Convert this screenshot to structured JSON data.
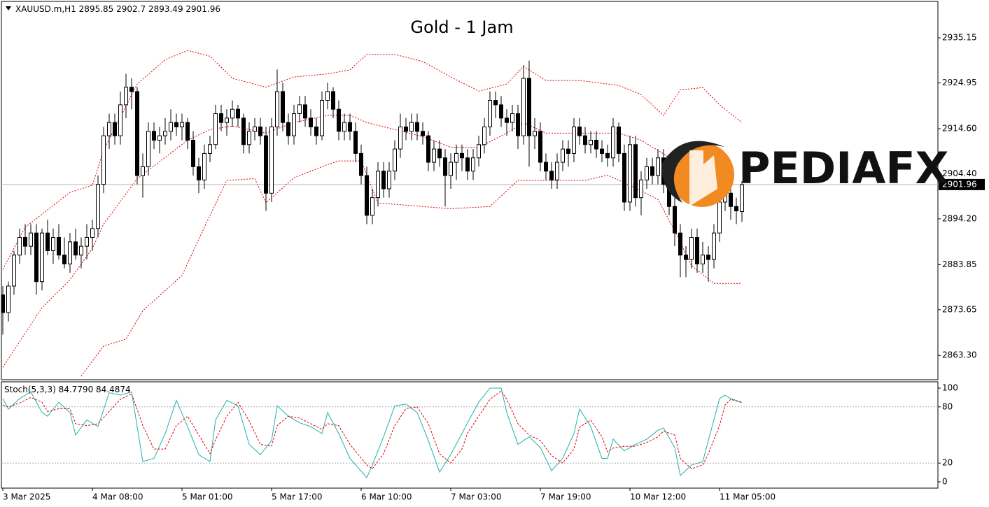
{
  "chart_data": {
    "type": "candlestick",
    "symbol": "XAUUSD.m,H1",
    "title": "Gold - 1 Jam",
    "watermark": "PEDIAFX",
    "up_color": "#ffffff",
    "down_color": "#000000",
    "ylim": [
      2857.8,
      2943.4
    ],
    "yticks": [
      {
        "value": 2863.3,
        "label": "2863.30"
      },
      2873.65,
      2883.85,
      {
        "value": 2894.2,
        "label": "2894.20"
      },
      {
        "value": 2904.4,
        "label": "2904.40"
      },
      {
        "value": 2914.6,
        "label": "2914.60"
      },
      2924.95,
      2935.15
    ],
    "xticks": [
      {
        "value": 0,
        "label": "3 Mar 2025"
      },
      {
        "value": 16,
        "label": "4 Mar 08:00"
      },
      {
        "value": 32,
        "label": "5 Mar 01:00"
      },
      {
        "value": 48,
        "label": "5 Mar 17:00"
      },
      {
        "value": 64,
        "label": "6 Mar 10:00"
      },
      {
        "value": 80,
        "label": "7 Mar 03:00"
      },
      {
        "value": 96,
        "label": "7 Mar 19:00"
      },
      {
        "value": 112,
        "label": "10 Mar 12:00"
      },
      {
        "value": 128,
        "label": "11 Mar 05:00"
      }
    ],
    "ohlc": [
      [
        2877,
        2879,
        2868,
        2873
      ],
      [
        2873,
        2880,
        2871,
        2879
      ],
      [
        2879,
        2887,
        2877,
        2886
      ],
      [
        2886,
        2892,
        2884,
        2890
      ],
      [
        2890,
        2893,
        2886,
        2888
      ],
      [
        2888,
        2893,
        2886,
        2891
      ],
      [
        2891,
        2893,
        2877,
        2880
      ],
      [
        2880,
        2892,
        2878,
        2891
      ],
      [
        2891,
        2894,
        2886,
        2887
      ],
      [
        2887,
        2892,
        2884,
        2890
      ],
      [
        2890,
        2893,
        2885,
        2886
      ],
      [
        2886,
        2890,
        2883,
        2884
      ],
      [
        2884,
        2891,
        2882,
        2889
      ],
      [
        2889,
        2892,
        2885,
        2886
      ],
      [
        2886,
        2890,
        2883,
        2888
      ],
      [
        2888,
        2893,
        2885,
        2890
      ],
      [
        2890,
        2894,
        2887,
        2892
      ],
      [
        2892,
        2904,
        2890,
        2902
      ],
      [
        2902,
        2915,
        2900,
        2913
      ],
      [
        2913,
        2918,
        2910,
        2916
      ],
      [
        2916,
        2918,
        2911,
        2913
      ],
      [
        2913,
        2923,
        2911,
        2920
      ],
      [
        2920,
        2927,
        2917,
        2924
      ],
      [
        2924,
        2926,
        2919,
        2923
      ],
      [
        2923,
        2924,
        2902,
        2904
      ],
      [
        2904,
        2909,
        2899,
        2906
      ],
      [
        2906,
        2916,
        2904,
        2914
      ],
      [
        2914,
        2916,
        2910,
        2912
      ],
      [
        2912,
        2915,
        2909,
        2913
      ],
      [
        2913,
        2917,
        2911,
        2914
      ],
      [
        2914,
        2919,
        2912,
        2916
      ],
      [
        2916,
        2918,
        2913,
        2915
      ],
      [
        2915,
        2918,
        2912,
        2916
      ],
      [
        2916,
        2917,
        2910,
        2912
      ],
      [
        2912,
        2914,
        2904,
        2906
      ],
      [
        2906,
        2908,
        2900,
        2903
      ],
      [
        2903,
        2911,
        2901,
        2909
      ],
      [
        2909,
        2913,
        2907,
        2911
      ],
      [
        2911,
        2920,
        2910,
        2918
      ],
      [
        2918,
        2920,
        2914,
        2916
      ],
      [
        2916,
        2919,
        2913,
        2917
      ],
      [
        2917,
        2921,
        2915,
        2919
      ],
      [
        2919,
        2920,
        2915,
        2917
      ],
      [
        2917,
        2918,
        2909,
        2911
      ],
      [
        2911,
        2916,
        2909,
        2914
      ],
      [
        2914,
        2917,
        2912,
        2915
      ],
      [
        2915,
        2917,
        2911,
        2913
      ],
      [
        2913,
        2915,
        2896,
        2900
      ],
      [
        2900,
        2917,
        2898,
        2915
      ],
      [
        2915,
        2928,
        2913,
        2923
      ],
      [
        2923,
        2925,
        2914,
        2916
      ],
      [
        2916,
        2918,
        2911,
        2913
      ],
      [
        2913,
        2920,
        2911,
        2918
      ],
      [
        2918,
        2922,
        2916,
        2920
      ],
      [
        2920,
        2922,
        2915,
        2917
      ],
      [
        2917,
        2919,
        2913,
        2915
      ],
      [
        2915,
        2917,
        2911,
        2913
      ],
      [
        2913,
        2923,
        2912,
        2921
      ],
      [
        2921,
        2925,
        2919,
        2923
      ],
      [
        2923,
        2924,
        2917,
        2919
      ],
      [
        2919,
        2921,
        2912,
        2914
      ],
      [
        2914,
        2918,
        2912,
        2916
      ],
      [
        2916,
        2918,
        2912,
        2914
      ],
      [
        2914,
        2916,
        2907,
        2909
      ],
      [
        2909,
        2911,
        2902,
        2904
      ],
      [
        2904,
        2906,
        2893,
        2895
      ],
      [
        2895,
        2901,
        2893,
        2899
      ],
      [
        2899,
        2907,
        2897,
        2905
      ],
      [
        2905,
        2907,
        2899,
        2901
      ],
      [
        2901,
        2907,
        2899,
        2905
      ],
      [
        2905,
        2912,
        2903,
        2910
      ],
      [
        2910,
        2918,
        2908,
        2915
      ],
      [
        2915,
        2917,
        2912,
        2914
      ],
      [
        2914,
        2918,
        2912,
        2916
      ],
      [
        2916,
        2918,
        2912,
        2914
      ],
      [
        2914,
        2916,
        2911,
        2913
      ],
      [
        2913,
        2914,
        2905,
        2907
      ],
      [
        2907,
        2912,
        2905,
        2910
      ],
      [
        2910,
        2912,
        2906,
        2908
      ],
      [
        2908,
        2910,
        2897,
        2904
      ],
      [
        2904,
        2909,
        2901,
        2907
      ],
      [
        2907,
        2911,
        2903,
        2909
      ],
      [
        2909,
        2911,
        2905,
        2908
      ],
      [
        2908,
        2910,
        2903,
        2905
      ],
      [
        2905,
        2910,
        2903,
        2908
      ],
      [
        2908,
        2913,
        2906,
        2911
      ],
      [
        2911,
        2917,
        2909,
        2915
      ],
      [
        2915,
        2923,
        2913,
        2921
      ],
      [
        2921,
        2923,
        2917,
        2920
      ],
      [
        2920,
        2922,
        2915,
        2917
      ],
      [
        2917,
        2919,
        2913,
        2916
      ],
      [
        2916,
        2920,
        2914,
        2918
      ],
      [
        2918,
        2920,
        2910,
        2913
      ],
      [
        2913,
        2929,
        2911,
        2926
      ],
      [
        2926,
        2930,
        2906,
        2913
      ],
      [
        2913,
        2917,
        2910,
        2914
      ],
      [
        2914,
        2916,
        2905,
        2907
      ],
      [
        2907,
        2909,
        2903,
        2905
      ],
      [
        2905,
        2907,
        2901,
        2903
      ],
      [
        2903,
        2909,
        2901,
        2907
      ],
      [
        2907,
        2912,
        2905,
        2910
      ],
      [
        2910,
        2912,
        2906,
        2909
      ],
      [
        2909,
        2917,
        2907,
        2915
      ],
      [
        2915,
        2917,
        2911,
        2913
      ],
      [
        2913,
        2915,
        2909,
        2911
      ],
      [
        2911,
        2914,
        2909,
        2912
      ],
      [
        2912,
        2914,
        2908,
        2910
      ],
      [
        2910,
        2912,
        2907,
        2909
      ],
      [
        2909,
        2911,
        2906,
        2908
      ],
      [
        2908,
        2917,
        2906,
        2915
      ],
      [
        2915,
        2916,
        2907,
        2909
      ],
      [
        2909,
        2911,
        2896,
        2898
      ],
      [
        2898,
        2913,
        2896,
        2911
      ],
      [
        2911,
        2913,
        2897,
        2899
      ],
      [
        2899,
        2905,
        2895,
        2903
      ],
      [
        2903,
        2908,
        2901,
        2906
      ],
      [
        2906,
        2908,
        2902,
        2904
      ],
      [
        2904,
        2910,
        2902,
        2908
      ],
      [
        2908,
        2910,
        2900,
        2902
      ],
      [
        2902,
        2904,
        2895,
        2897
      ],
      [
        2897,
        2899,
        2888,
        2891
      ],
      [
        2891,
        2893,
        2881,
        2886
      ],
      [
        2886,
        2888,
        2881,
        2885
      ],
      [
        2885,
        2892,
        2883,
        2890
      ],
      [
        2890,
        2892,
        2882,
        2884
      ],
      [
        2884,
        2889,
        2882,
        2886
      ],
      [
        2886,
        2888,
        2880,
        2885
      ],
      [
        2885,
        2893,
        2883,
        2891
      ],
      [
        2891,
        2900,
        2889,
        2898
      ],
      [
        2898,
        2902,
        2896,
        2900
      ],
      [
        2900,
        2901,
        2894,
        2897
      ],
      [
        2897,
        2899,
        2893,
        2896
      ],
      [
        2895.85,
        2902.7,
        2893.49,
        2901.96
      ]
    ],
    "bands": {
      "color": "#e00000",
      "upper": {
        "x": [
          0,
          4,
          12,
          16,
          18,
          24,
          29,
          33,
          37,
          41,
          47,
          52,
          58,
          62,
          65,
          70,
          75,
          80,
          85,
          90,
          93,
          97,
          103,
          110,
          114,
          118,
          121,
          125,
          128,
          132
        ],
        "values": [
          2882.8,
          2892.3,
          2900.2,
          2901.8,
          2909.7,
          2924.7,
          2930.2,
          2932.3,
          2931,
          2926,
          2924,
          2926.3,
          2927,
          2927.9,
          2931.4,
          2931.4,
          2929.8,
          2926.3,
          2923.1,
          2924.7,
          2928.7,
          2925.5,
          2925.5,
          2924.4,
          2922.3,
          2917.6,
          2923.4,
          2923.9,
          2920,
          2916
        ]
      },
      "middle": {
        "x": [
          0,
          7,
          12,
          16,
          18,
          24,
          29,
          33,
          37,
          41,
          47,
          52,
          58,
          62,
          65,
          70,
          75,
          80,
          85,
          90,
          93,
          97,
          103,
          110,
          114,
          118,
          121,
          125,
          128
        ],
        "values": [
          2860.6,
          2874.1,
          2880.4,
          2887.5,
          2893,
          2903.3,
          2908.1,
          2912,
          2914.4,
          2915.2,
          2913.6,
          2916,
          2917.6,
          2917.6,
          2916,
          2914.4,
          2912.8,
          2910.4,
          2910.4,
          2913.6,
          2916,
          2913.6,
          2913.6,
          2913.6,
          2912,
          2908.9,
          2906.5,
          2904.1,
          2902.6
        ]
      },
      "lower": {
        "x": [
          14,
          18,
          22,
          25,
          32,
          36,
          40,
          45,
          47,
          52,
          58,
          60,
          64,
          67,
          75,
          80,
          87,
          92,
          104,
          108,
          112,
          117,
          120,
          123,
          127,
          132
        ],
        "values": [
          2858.6,
          2865.4,
          2867,
          2873.4,
          2881.4,
          2892.3,
          2902.9,
          2903.3,
          2897.8,
          2903.5,
          2906.5,
          2907.3,
          2907.3,
          2897.8,
          2897,
          2896.5,
          2897,
          2902.9,
          2902.9,
          2904.1,
          2901.8,
          2898.6,
          2891.5,
          2883.6,
          2879.6,
          2879.6
        ]
      }
    },
    "stoch": {
      "label": "Stoch(5,3,3)",
      "readout": [
        {
          "value": 84.779,
          "label": "84.7790"
        },
        84.4874
      ],
      "ylim": [
        -6.7,
        106.7
      ],
      "yticks": [
        0,
        20,
        80,
        100
      ],
      "levels": [
        20,
        80
      ],
      "x": [
        0,
        1,
        3,
        5,
        7,
        8,
        10,
        12,
        13,
        15,
        17,
        19,
        21,
        23,
        25,
        27,
        29,
        31,
        33,
        35,
        37,
        38,
        40,
        42,
        44,
        46,
        48,
        49,
        51,
        53,
        55,
        57,
        58,
        60,
        62,
        65,
        66,
        68,
        70,
        72,
        74,
        76,
        78,
        80,
        82,
        83,
        85,
        87,
        89,
        90,
        92,
        94,
        96,
        98,
        100,
        102,
        103,
        105,
        107,
        108,
        109,
        111,
        113,
        115,
        117,
        118,
        120,
        121,
        123,
        125,
        126,
        128,
        129,
        130,
        132
      ],
      "main": {
        "color": "#20b2aa",
        "values": [
          88.8,
          77.6,
          88.8,
          96,
          74,
          70,
          85,
          74,
          50,
          66,
          59,
          95,
          92.5,
          96,
          21.6,
          25,
          51.5,
          87,
          59,
          29,
          21.6,
          66,
          87,
          81,
          40,
          29,
          44,
          81,
          70,
          63,
          59,
          51.5,
          74,
          51.5,
          25,
          4.5,
          18,
          48,
          81,
          83,
          74,
          44,
          10.4,
          29,
          51.5,
          63,
          85,
          100,
          100,
          74,
          40,
          48,
          36.6,
          12,
          25,
          51.5,
          77.6,
          59,
          25,
          25,
          45.5,
          33,
          40,
          45.5,
          55,
          57.5,
          36.6,
          6.7,
          18,
          21.6,
          44,
          88.8,
          92.5,
          88.8,
          84.779
        ]
      },
      "signal": {
        "color": "#e00000",
        "values": [
          82,
          80,
          84,
          90,
          85,
          75,
          78,
          78,
          62,
          60,
          62,
          75,
          88,
          94,
          60,
          35,
          35,
          60,
          70,
          50,
          30,
          45,
          70,
          85,
          65,
          40,
          38,
          60,
          70,
          68,
          62,
          56,
          62,
          60,
          40,
          18,
          14,
          30,
          60,
          78,
          80,
          62,
          30,
          20,
          35,
          52,
          70,
          88,
          97,
          88,
          62,
          50,
          44,
          28,
          20,
          35,
          58,
          66,
          48,
          32,
          36,
          38,
          38,
          42,
          48,
          54,
          50,
          25,
          14,
          18,
          30,
          60,
          82,
          88,
          84.4874
        ]
      }
    }
  }
}
